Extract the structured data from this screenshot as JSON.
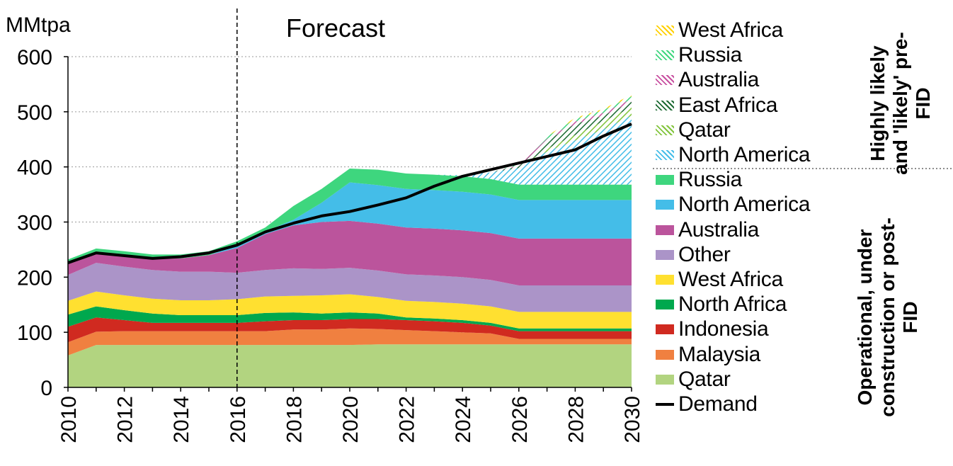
{
  "chart_data": {
    "type": "area",
    "unit_label": "MMtpa",
    "forecast_label": "Forecast",
    "forecast_start": 2016,
    "x": [
      2010,
      2011,
      2012,
      2013,
      2014,
      2015,
      2016,
      2017,
      2018,
      2019,
      2020,
      2021,
      2022,
      2023,
      2024,
      2025,
      2026,
      2027,
      2028,
      2029,
      2030
    ],
    "x_ticks": [
      "2010",
      "2012",
      "2014",
      "2016",
      "2018",
      "2020",
      "2022",
      "2024",
      "2026",
      "2028",
      "2030"
    ],
    "y_ticks": [
      "0",
      "100",
      "200",
      "300",
      "400",
      "500",
      "600"
    ],
    "ylim": [
      0,
      600
    ],
    "grid": "horizontal dotted",
    "series": [
      {
        "name": "Qatar",
        "group": "operational",
        "color": "#b2d480",
        "values": [
          58,
          77,
          77,
          77,
          77,
          77,
          77,
          77,
          77,
          77,
          77,
          78,
          78,
          78,
          78,
          78,
          78,
          78,
          78,
          78,
          78
        ]
      },
      {
        "name": "Malaysia",
        "group": "operational",
        "color": "#f08040",
        "values": [
          24,
          24,
          25,
          25,
          25,
          25,
          25,
          25,
          28,
          28,
          30,
          28,
          26,
          24,
          22,
          20,
          10,
          10,
          10,
          10,
          10
        ]
      },
      {
        "name": "Indonesia",
        "group": "operational",
        "color": "#d02a20",
        "values": [
          28,
          26,
          20,
          15,
          15,
          15,
          15,
          18,
          17,
          17,
          17,
          18,
          18,
          18,
          17,
          14,
          14,
          14,
          14,
          14,
          14
        ]
      },
      {
        "name": "North Africa",
        "group": "operational",
        "color": "#00a84e",
        "values": [
          22,
          20,
          18,
          17,
          14,
          14,
          14,
          15,
          14,
          12,
          12,
          10,
          5,
          5,
          5,
          5,
          5,
          5,
          5,
          5,
          5
        ]
      },
      {
        "name": "West Africa",
        "group": "operational",
        "color": "#ffe030",
        "values": [
          25,
          27,
          27,
          27,
          27,
          27,
          29,
          30,
          30,
          33,
          33,
          30,
          30,
          30,
          30,
          30,
          30,
          30,
          30,
          30,
          30
        ]
      },
      {
        "name": "Other",
        "group": "operational",
        "color": "#ab94c8",
        "values": [
          47,
          52,
          52,
          52,
          52,
          52,
          48,
          48,
          50,
          48,
          48,
          48,
          48,
          48,
          48,
          48,
          48,
          48,
          48,
          48,
          48
        ]
      },
      {
        "name": "Australia",
        "group": "operational",
        "color": "#bb549c",
        "values": [
          23,
          17,
          19,
          20,
          24,
          30,
          45,
          65,
          78,
          85,
          85,
          85,
          85,
          85,
          85,
          85,
          85,
          85,
          85,
          85,
          85
        ]
      },
      {
        "name": "North America",
        "group": "operational",
        "color": "#44bde8",
        "values": [
          0,
          0,
          0,
          0,
          0,
          0,
          5,
          5,
          10,
          35,
          70,
          70,
          70,
          70,
          70,
          70,
          70,
          70,
          70,
          70,
          70
        ]
      },
      {
        "name": "Russia",
        "group": "operational",
        "color": "#3ed67e",
        "values": [
          5,
          9,
          9,
          8,
          7,
          7,
          7,
          7,
          25,
          25,
          25,
          28,
          28,
          28,
          28,
          28,
          28,
          28,
          28,
          28,
          28
        ]
      },
      {
        "name": "North America",
        "group": "pre-FID",
        "color": "#44bde8",
        "values": [
          0,
          0,
          0,
          0,
          0,
          0,
          0,
          0,
          0,
          0,
          0,
          0,
          0,
          0,
          2,
          12,
          30,
          60,
          80,
          100,
          125
        ]
      },
      {
        "name": "Qatar",
        "group": "pre-FID",
        "color": "#82c43c",
        "values": [
          0,
          0,
          0,
          0,
          0,
          0,
          0,
          0,
          0,
          0,
          0,
          0,
          0,
          0,
          0,
          0,
          0,
          5,
          10,
          15,
          15
        ]
      },
      {
        "name": "East Africa",
        "group": "pre-FID",
        "color": "#1c6a32",
        "values": [
          0,
          0,
          0,
          0,
          0,
          0,
          0,
          0,
          0,
          0,
          0,
          0,
          0,
          0,
          0,
          0,
          3,
          15,
          20,
          10,
          10
        ]
      },
      {
        "name": "Australia",
        "group": "pre-FID",
        "color": "#c850a0",
        "values": [
          0,
          0,
          0,
          0,
          0,
          0,
          0,
          0,
          0,
          0,
          0,
          0,
          0,
          0,
          0,
          0,
          2,
          3,
          4,
          5,
          5
        ]
      },
      {
        "name": "Russia",
        "group": "pre-FID",
        "color": "#3ed67e",
        "values": [
          0,
          0,
          0,
          0,
          0,
          0,
          0,
          0,
          0,
          0,
          0,
          0,
          0,
          0,
          0,
          0,
          2,
          4,
          5,
          5,
          5
        ]
      },
      {
        "name": "West Africa",
        "group": "pre-FID",
        "color": "#ffd000",
        "values": [
          0,
          0,
          0,
          0,
          0,
          0,
          0,
          0,
          0,
          0,
          0,
          0,
          0,
          0,
          0,
          0,
          0,
          1,
          2,
          2,
          3
        ]
      }
    ],
    "demand": {
      "name": "Demand",
      "color": "#000000",
      "values": [
        226,
        244,
        239,
        234,
        237,
        244,
        258,
        282,
        298,
        311,
        319,
        331,
        344,
        365,
        383,
        395,
        407,
        419,
        431,
        456,
        478
      ]
    }
  },
  "legend": {
    "items": [
      {
        "label": "West Africa",
        "color": "#ffd000",
        "style": "hatch"
      },
      {
        "label": "Russia",
        "color": "#3ed67e",
        "style": "hatch"
      },
      {
        "label": "Australia",
        "color": "#c850a0",
        "style": "hatch"
      },
      {
        "label": "East Africa",
        "color": "#1c6a32",
        "style": "hatch"
      },
      {
        "label": "Qatar",
        "color": "#82c43c",
        "style": "hatch"
      },
      {
        "label": "North America",
        "color": "#44bde8",
        "style": "hatch"
      },
      {
        "label": "Russia",
        "color": "#3ed67e",
        "style": "solid"
      },
      {
        "label": "North America",
        "color": "#44bde8",
        "style": "solid"
      },
      {
        "label": "Australia",
        "color": "#bb549c",
        "style": "solid"
      },
      {
        "label": "Other",
        "color": "#ab94c8",
        "style": "solid"
      },
      {
        "label": "West Africa",
        "color": "#ffe030",
        "style": "solid"
      },
      {
        "label": "North Africa",
        "color": "#00a84e",
        "style": "solid"
      },
      {
        "label": "Indonesia",
        "color": "#d02a20",
        "style": "solid"
      },
      {
        "label": "Malaysia",
        "color": "#f08040",
        "style": "solid"
      },
      {
        "label": "Qatar",
        "color": "#b2d480",
        "style": "solid"
      },
      {
        "label": "Demand",
        "color": "#000000",
        "style": "line"
      }
    ],
    "group_top": "Highly likely and 'likely' pre-FID",
    "group_bottom": "Operational, under construction or post-FID"
  }
}
